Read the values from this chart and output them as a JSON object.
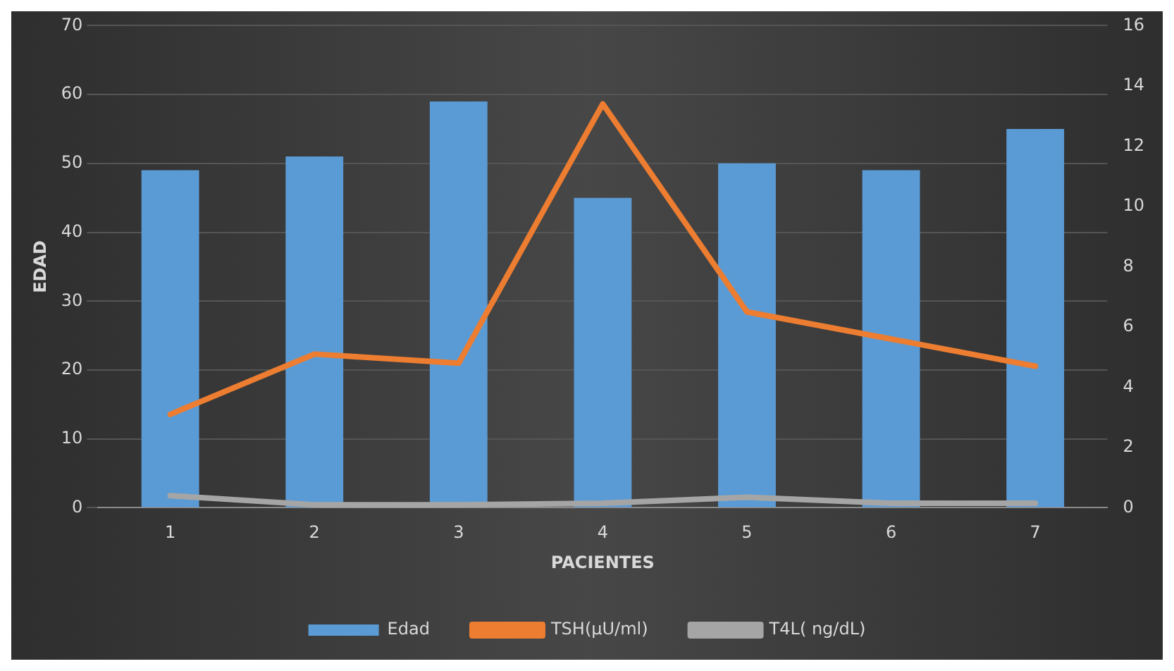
{
  "chart_data": {
    "type": "bar",
    "xlabel": "PACIENTES",
    "ylabel": "EDAD",
    "categories": [
      "1",
      "2",
      "3",
      "4",
      "5",
      "6",
      "7"
    ],
    "series": [
      {
        "name": "Edad",
        "color": "#5b9bd5",
        "values": [
          49,
          51,
          59,
          45,
          50,
          49,
          55
        ]
      },
      {
        "name": "TSH(µU/ml)",
        "type": "line",
        "axis": "y2",
        "color": "#ed7d31",
        "values": [
          3.1,
          5.1,
          4.8,
          13.4,
          6.5,
          5.6,
          4.7
        ]
      },
      {
        "name": "T4L( ng/dL)",
        "type": "line",
        "axis": "y2",
        "color": "#a5a5a5",
        "values": [
          0.4,
          0.1,
          0.1,
          0.15,
          0.35,
          0.15,
          0.15
        ]
      }
    ],
    "ylim": [
      0,
      70
    ],
    "yticks": [
      0,
      10,
      20,
      30,
      40,
      50,
      60,
      70
    ],
    "y2lim": [
      0,
      16
    ],
    "y2ticks": [
      0,
      2,
      4,
      6,
      8,
      10,
      12,
      14,
      16
    ],
    "grid": "y",
    "legend": "bottom",
    "marker": "none"
  }
}
